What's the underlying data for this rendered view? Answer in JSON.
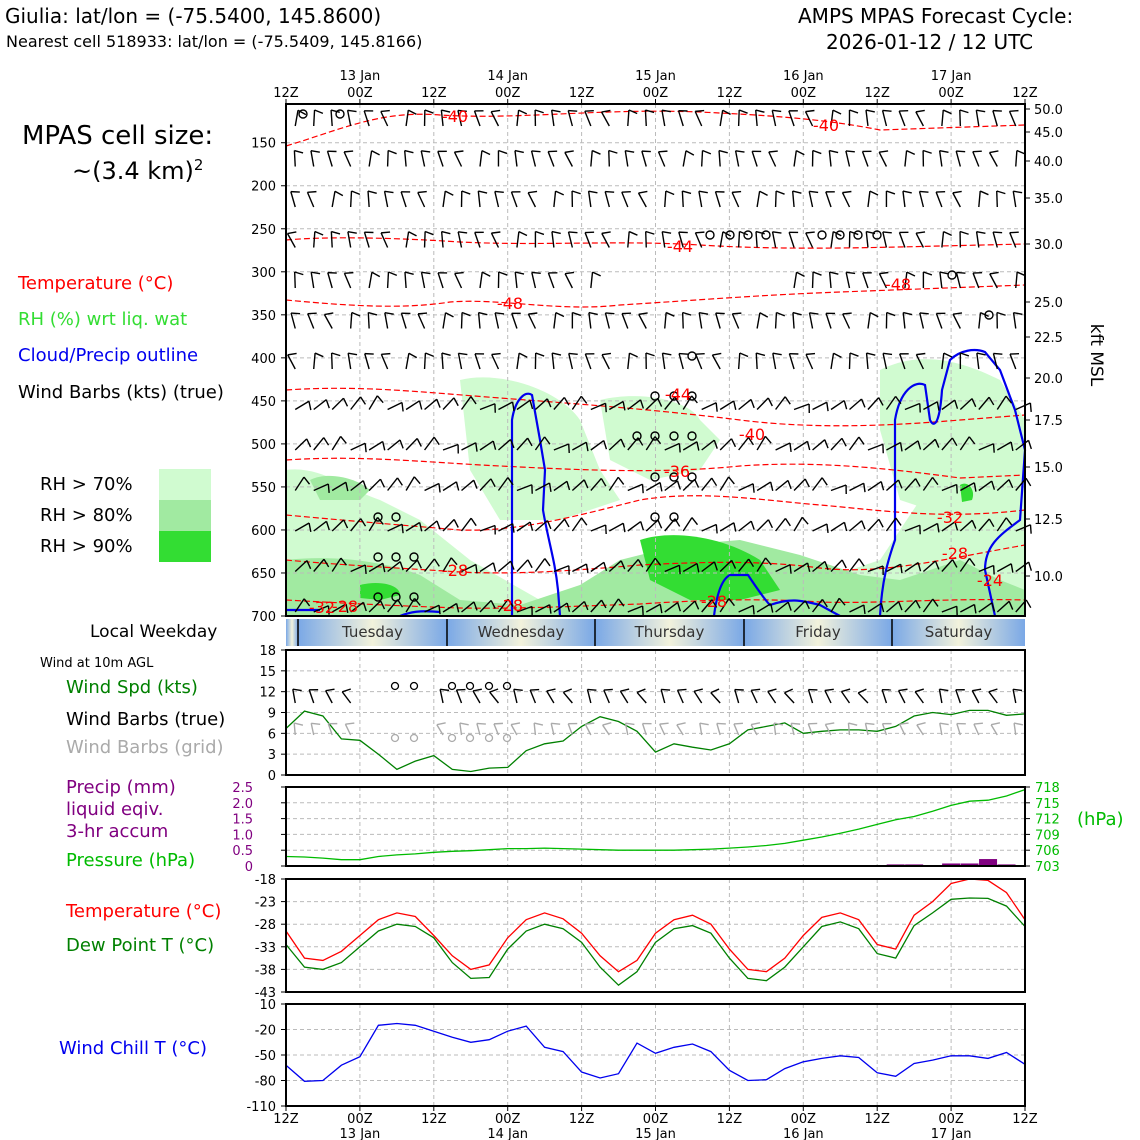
{
  "header": {
    "location_line": "Giulia: lat/lon = (-75.5400, 145.8600)",
    "nearest_cell_line": "Nearest cell 518933: lat/lon = (-75.5409, 145.8166)",
    "cycle_title_1": "AMPS MPAS Forecast Cycle:",
    "cycle_title_2": "2026-01-12 / 12 UTC"
  },
  "legend": {
    "cell_size_label": "MPAS cell size:",
    "cell_size_value": "~(3.4 km)",
    "cell_size_exp": "2",
    "temperature": "Temperature (°C)",
    "rh": "RH (%) wrt liq. wat",
    "cloud": "Cloud/Precip outline",
    "wind_barbs": "Wind Barbs (kts) (true)",
    "rh70": "RH > 70%",
    "rh80": "RH > 80%",
    "rh90": "RH > 90%",
    "local_weekday": "Local Weekday",
    "wind_10m": "Wind at 10m AGL",
    "wind_spd": "Wind Spd (kts)",
    "wind_barbs_true": "Wind Barbs (true)",
    "wind_barbs_grid": "Wind Barbs (grid)",
    "precip_1": "Precip (mm)",
    "precip_2": "liquid eqiv.",
    "precip_3": "3-hr accum",
    "pressure": "Pressure (hPa)",
    "hpa_unit": "(hPa)",
    "temp2": "Temperature (°C)",
    "dewpoint": "Dew Point T (°C)",
    "windchill": "Wind Chill T (°C)",
    "kft_label": "kft MSL"
  },
  "colors": {
    "temperature": "#ff0000",
    "rh": "#22cc22",
    "cloud": "#0000ee",
    "black": "#000000",
    "grid_barbs": "#aaaaaa",
    "precip": "#800080",
    "pressure": "#00bb00",
    "dewpoint": "#008000",
    "windchill": "#0000ee",
    "rh70": "#d0fbd0",
    "rh80": "#a1eaa1",
    "rh90": "#33dd33"
  },
  "time_axis": {
    "ticks": [
      "12Z",
      "00Z",
      "12Z",
      "00Z",
      "12Z",
      "00Z",
      "12Z",
      "00Z",
      "12Z",
      "00Z",
      "12Z"
    ],
    "dates": [
      "13 Jan",
      "14 Jan",
      "15 Jan",
      "16 Jan",
      "17 Jan"
    ]
  },
  "weekdays": [
    "Tuesday",
    "Wednesday",
    "Thursday",
    "Friday",
    "Saturday"
  ],
  "chart_data": [
    {
      "type": "heatmap",
      "panel": "cross-section",
      "y_pressure_ticks": [
        "150",
        "200",
        "250",
        "300",
        "350",
        "400",
        "450",
        "500",
        "550",
        "600",
        "650",
        "700"
      ],
      "y_kft_ticks": [
        "50.0",
        "45.0",
        "40.0",
        "35.0",
        "30.0",
        "25.0",
        "22.5",
        "20.0",
        "17.5",
        "15.0",
        "12.5",
        "10.0"
      ],
      "ylabel_right": "kft MSL",
      "temperature_contour_labels": [
        "-40",
        "-40",
        "-44",
        "-48",
        "-48",
        "-44",
        "-40",
        "-36",
        "-32",
        "-28",
        "-28",
        "-28",
        "-28",
        "-24",
        "-32",
        "-28"
      ],
      "grid": true
    },
    {
      "type": "line",
      "panel": "wind",
      "ylim": [
        0,
        18
      ],
      "yticks": [
        "0",
        "3",
        "6",
        "9",
        "12",
        "15",
        "18"
      ],
      "x": [
        0,
        3,
        6,
        9,
        12,
        15,
        18,
        21,
        24,
        27,
        30,
        33,
        36,
        39,
        42,
        45,
        48,
        51,
        54,
        57,
        60,
        63,
        66,
        69,
        72,
        75,
        78,
        81,
        84,
        87,
        90,
        93,
        96,
        99,
        102,
        105,
        108,
        111,
        114,
        117,
        120
      ],
      "series": [
        {
          "name": "Wind Spd (kts)",
          "values": [
            6.7,
            9.2,
            8.5,
            5.2,
            5.0,
            3.0,
            0.8,
            2.0,
            2.8,
            0.8,
            0.5,
            1.0,
            1.1,
            3.5,
            4.5,
            4.9,
            7.0,
            8.4,
            7.7,
            6.3,
            3.3,
            4.5,
            4.0,
            3.6,
            4.5,
            6.5,
            7.0,
            7.5,
            6.0,
            6.3,
            6.5,
            6.5,
            6.3,
            7.0,
            8.5,
            9.0,
            8.7,
            9.3,
            9.3,
            8.6,
            8.8
          ]
        }
      ]
    },
    {
      "type": "line",
      "panel": "precip-pressure",
      "precip_yticks": [
        "0",
        "0.5",
        "1.0",
        "1.5",
        "2.0",
        "2.5"
      ],
      "pressure_yticks": [
        "703",
        "706",
        "709",
        "712",
        "715",
        "718"
      ],
      "x": [
        0,
        3,
        6,
        9,
        12,
        15,
        18,
        21,
        24,
        27,
        30,
        33,
        36,
        39,
        42,
        45,
        48,
        51,
        54,
        57,
        60,
        63,
        66,
        69,
        72,
        75,
        78,
        81,
        84,
        87,
        90,
        93,
        96,
        99,
        102,
        105,
        108,
        111,
        114,
        117,
        120
      ],
      "series": [
        {
          "name": "Pressure (hPa)",
          "values": [
            704.8,
            704.7,
            704.5,
            704.2,
            704.2,
            704.8,
            705.1,
            705.3,
            705.6,
            705.8,
            705.9,
            706.1,
            706.3,
            706.3,
            706.4,
            706.3,
            706.2,
            706.1,
            706.0,
            706.0,
            706.0,
            706.0,
            706.1,
            706.2,
            706.4,
            706.6,
            706.9,
            707.3,
            707.9,
            708.5,
            709.2,
            710.0,
            710.9,
            711.8,
            712.4,
            713.4,
            714.5,
            715.3,
            715.5,
            716.3,
            717.5
          ]
        },
        {
          "name": "Precip (mm)",
          "values": [
            0,
            0,
            0,
            0,
            0,
            0,
            0,
            0,
            0,
            0,
            0,
            0,
            0,
            0,
            0,
            0,
            0,
            0,
            0,
            0,
            0,
            0,
            0,
            0,
            0,
            0,
            0,
            0,
            0,
            0,
            0,
            0,
            0,
            0.05,
            0.05,
            0,
            0.08,
            0.08,
            0.22,
            0.05,
            0
          ]
        }
      ]
    },
    {
      "type": "line",
      "panel": "temperature",
      "ylim": [
        -43,
        -18
      ],
      "yticks": [
        "-43",
        "-38",
        "-33",
        "-28",
        "-23",
        "-18"
      ],
      "x": [
        0,
        3,
        6,
        9,
        12,
        15,
        18,
        21,
        24,
        27,
        30,
        33,
        36,
        39,
        42,
        45,
        48,
        51,
        54,
        57,
        60,
        63,
        66,
        69,
        72,
        75,
        78,
        81,
        84,
        87,
        90,
        93,
        96,
        99,
        102,
        105,
        108,
        111,
        114,
        117,
        120
      ],
      "series": [
        {
          "name": "Temperature (°C)",
          "values": [
            -29.5,
            -35.5,
            -36.0,
            -34.0,
            -30.5,
            -27.0,
            -25.5,
            -26.3,
            -30.5,
            -35.0,
            -38.0,
            -37.0,
            -31.0,
            -27.0,
            -25.5,
            -26.8,
            -30.0,
            -35.0,
            -38.5,
            -36.0,
            -30.0,
            -27.0,
            -26.0,
            -28.0,
            -33.5,
            -38.0,
            -38.5,
            -35.5,
            -30.5,
            -26.5,
            -25.5,
            -27.0,
            -32.5,
            -33.5,
            -26.0,
            -23.0,
            -19.0,
            -18.0,
            -18.3,
            -21.0,
            -27.0
          ]
        },
        {
          "name": "Dew Point T (°C)",
          "values": [
            -32.5,
            -37.5,
            -38.0,
            -36.5,
            -33.0,
            -29.5,
            -28.0,
            -28.5,
            -31.0,
            -36.5,
            -40.0,
            -39.8,
            -33.5,
            -29.5,
            -28.0,
            -29.0,
            -32.0,
            -37.5,
            -41.5,
            -38.5,
            -32.0,
            -29.0,
            -28.3,
            -30.0,
            -35.5,
            -40.0,
            -40.5,
            -37.5,
            -33.0,
            -28.5,
            -27.5,
            -29.0,
            -34.5,
            -35.5,
            -28.3,
            -25.5,
            -22.5,
            -22.2,
            -22.3,
            -24.0,
            -28.5
          ]
        }
      ]
    },
    {
      "type": "line",
      "panel": "wind-chill",
      "ylim": [
        -110,
        10
      ],
      "yticks": [
        "-110",
        "-80",
        "-50",
        "-20",
        "10"
      ],
      "x": [
        0,
        3,
        6,
        9,
        12,
        15,
        18,
        21,
        24,
        27,
        30,
        33,
        36,
        39,
        42,
        45,
        48,
        51,
        54,
        57,
        60,
        63,
        66,
        69,
        72,
        75,
        78,
        81,
        84,
        87,
        90,
        93,
        96,
        99,
        102,
        105,
        108,
        111,
        114,
        117,
        120
      ],
      "series": [
        {
          "name": "Wind Chill T (°C)",
          "values": [
            -62,
            -81,
            -80,
            -62,
            -52,
            -15,
            -13,
            -15,
            -22,
            -29,
            -35,
            -32,
            -22,
            -16,
            -41,
            -46,
            -70,
            -77,
            -72,
            -36,
            -48,
            -41,
            -37,
            -46,
            -68,
            -80,
            -79,
            -66,
            -58,
            -54,
            -51,
            -53,
            -71,
            -75,
            -60,
            -56,
            -51,
            -51,
            -54,
            -47,
            -61
          ]
        }
      ]
    }
  ]
}
